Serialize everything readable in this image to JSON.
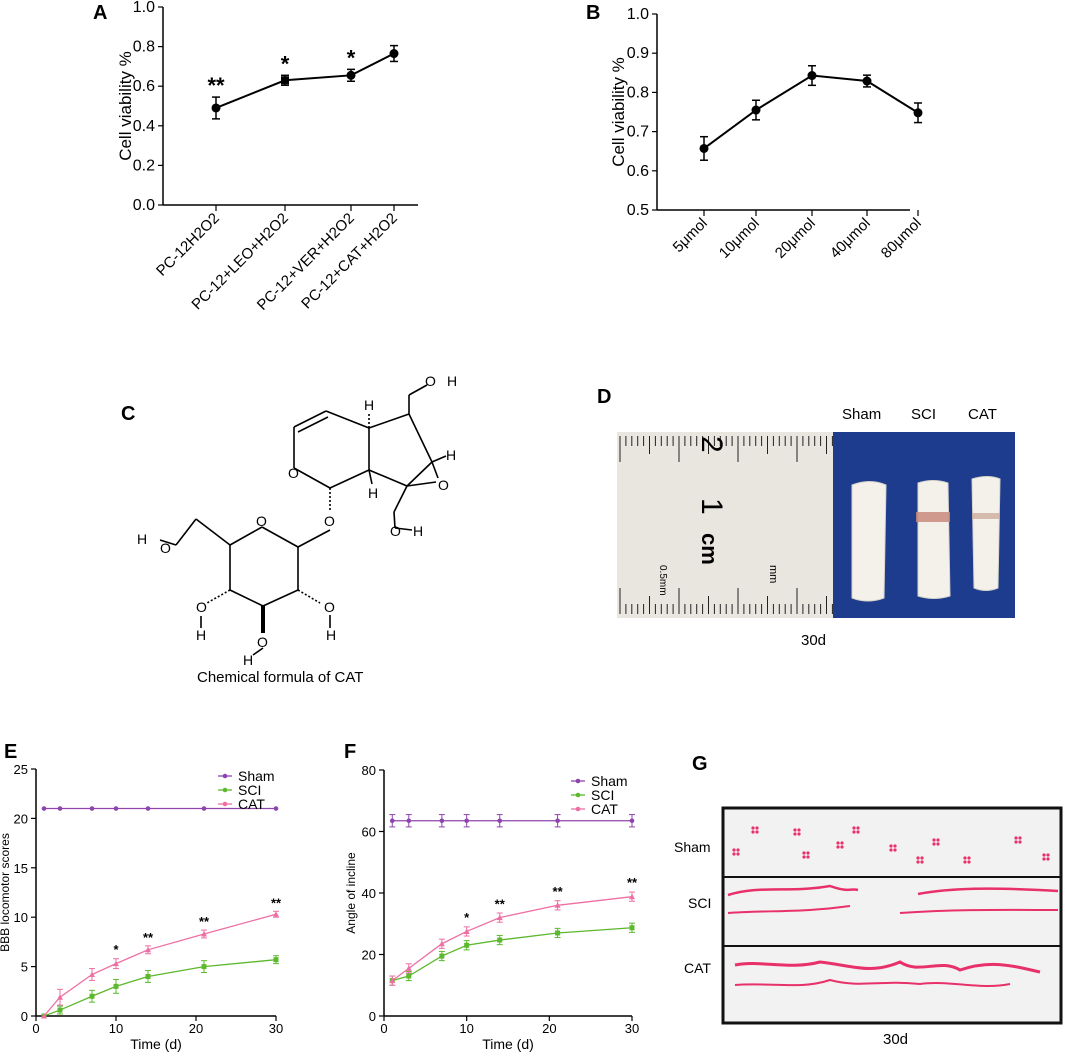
{
  "panel_letters": {
    "A": "A",
    "B": "B",
    "C": "C",
    "D": "D",
    "E": "E",
    "F": "F",
    "G": "G"
  },
  "chart_data": [
    {
      "id": "A",
      "type": "line",
      "ylabel": "Cell viability %",
      "xlabel": "",
      "categories": [
        "PC-12H2O2",
        "PC-12+LEO+H2O2",
        "PC-12+VER+H2O2",
        "PC-12+CAT+H2O2"
      ],
      "values": [
        0.49,
        0.63,
        0.655,
        0.765
      ],
      "errors": [
        0.055,
        0.025,
        0.03,
        0.04
      ],
      "significance": [
        "**",
        "*",
        "*",
        ""
      ],
      "ylim": [
        0.0,
        1.0
      ],
      "yticks": [
        "0.0",
        "0.2",
        "0.4",
        "0.6",
        "0.8",
        "1.0"
      ]
    },
    {
      "id": "B",
      "type": "line",
      "ylabel": "Cell viability %",
      "xlabel": "",
      "categories": [
        "5μmol",
        "10μmol",
        "20μmol",
        "40μmol",
        "80μmol"
      ],
      "values": [
        0.657,
        0.755,
        0.843,
        0.829,
        0.748
      ],
      "errors": [
        0.03,
        0.025,
        0.025,
        0.015,
        0.025
      ],
      "ylim": [
        0.5,
        1.0
      ],
      "yticks": [
        "0.5",
        "0.6",
        "0.7",
        "0.8",
        "0.9",
        "1.0"
      ]
    },
    {
      "id": "E",
      "type": "line",
      "xlabel": "Time (d)",
      "ylabel": "BBB locomotor scores",
      "xlim": [
        0,
        30
      ],
      "ylim": [
        0,
        25
      ],
      "xticks": [
        "0",
        "10",
        "20",
        "30"
      ],
      "yticks": [
        "0",
        "5",
        "10",
        "15",
        "20",
        "25"
      ],
      "legend_position": "top-right",
      "series": [
        {
          "name": "Sham",
          "color": "#8e44ad",
          "x": [
            1,
            3,
            7,
            10,
            14,
            21,
            30
          ],
          "y": [
            21,
            21,
            21,
            21,
            21,
            21,
            21
          ],
          "err": [
            0,
            0,
            0,
            0,
            0,
            0,
            0
          ]
        },
        {
          "name": "SCI",
          "color": "#5cb82c",
          "x": [
            1,
            3,
            7,
            10,
            14,
            21,
            30
          ],
          "y": [
            0,
            0.6,
            2.0,
            3.0,
            4.0,
            5.0,
            5.7
          ],
          "err": [
            0,
            0.4,
            0.6,
            0.7,
            0.6,
            0.6,
            0.4
          ]
        },
        {
          "name": "CAT",
          "color": "#ee6fa3",
          "x": [
            1,
            3,
            7,
            10,
            14,
            21,
            30
          ],
          "y": [
            0,
            1.9,
            4.2,
            5.3,
            6.7,
            8.3,
            10.3
          ],
          "err": [
            0,
            0.8,
            0.6,
            0.5,
            0.4,
            0.4,
            0.3
          ]
        }
      ],
      "annotations": [
        {
          "x": 10,
          "y": 6.3,
          "text": "*"
        },
        {
          "x": 14,
          "y": 7.5,
          "text": "**"
        },
        {
          "x": 21,
          "y": 9.1,
          "text": "**"
        },
        {
          "x": 30,
          "y": 11.0,
          "text": "**"
        }
      ]
    },
    {
      "id": "F",
      "type": "line",
      "xlabel": "Time (d)",
      "ylabel": "Angle of incline",
      "xlim": [
        0,
        30
      ],
      "ylim": [
        0,
        80
      ],
      "xticks": [
        "0",
        "10",
        "20",
        "30"
      ],
      "yticks": [
        "0",
        "20",
        "40",
        "60",
        "80"
      ],
      "legend_position": "top-right",
      "series": [
        {
          "name": "Sham",
          "color": "#8e44ad",
          "x": [
            1,
            3,
            7,
            10,
            14,
            21,
            30
          ],
          "y": [
            63.5,
            63.5,
            63.5,
            63.5,
            63.5,
            63.5,
            63.5
          ],
          "err": [
            2,
            2,
            2,
            2,
            2,
            2,
            2
          ]
        },
        {
          "name": "SCI",
          "color": "#5cb82c",
          "x": [
            1,
            3,
            7,
            10,
            14,
            21,
            30
          ],
          "y": [
            11.5,
            13.0,
            19.5,
            23.0,
            24.7,
            27.0,
            28.7
          ],
          "err": [
            1.5,
            1.5,
            1.5,
            1.5,
            1.5,
            1.5,
            1.5
          ]
        },
        {
          "name": "CAT",
          "color": "#ee6fa3",
          "x": [
            1,
            3,
            7,
            10,
            14,
            21,
            30
          ],
          "y": [
            11.5,
            15.5,
            23.5,
            27.5,
            32.0,
            36.0,
            38.8
          ],
          "err": [
            1.5,
            1.5,
            1.5,
            1.5,
            1.5,
            1.5,
            1.5
          ]
        }
      ],
      "annotations": [
        {
          "x": 10,
          "y": 30.5,
          "text": "*"
        },
        {
          "x": 14,
          "y": 35.0,
          "text": "**"
        },
        {
          "x": 21,
          "y": 39.0,
          "text": "**"
        },
        {
          "x": 30,
          "y": 42.0,
          "text": "**"
        }
      ]
    }
  ],
  "panel_C": {
    "caption": "Chemical formula of CAT",
    "atoms": {
      "O": "O",
      "H": "H"
    }
  },
  "panel_D": {
    "labels": [
      "Sham",
      "SCI",
      "CAT"
    ],
    "caption": "30d",
    "ruler_text": {
      "two": "2",
      "one": "1",
      "cm": "cm",
      "mm": "mm",
      "half_mm": "0.5mm"
    }
  },
  "panel_G": {
    "rows": [
      "Sham",
      "SCI",
      "CAT"
    ],
    "caption": "30d",
    "ink_color": "#e8306a"
  }
}
